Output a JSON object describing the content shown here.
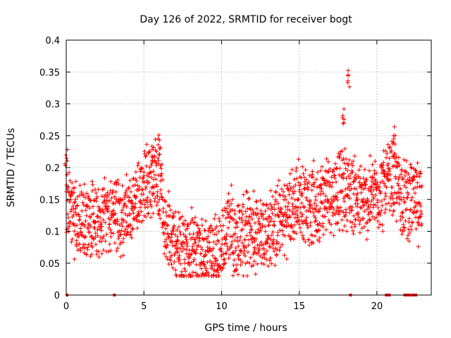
{
  "chart_data": {
    "type": "scatter",
    "title": "Day 126 of 2022, SRMTID for receiver bogt",
    "xlabel": "GPS time / hours",
    "ylabel": "SRMTID / TECUs",
    "xlim": [
      0,
      23.5
    ],
    "ylim": [
      0,
      0.4
    ],
    "xticks": [
      0,
      5,
      10,
      15,
      20
    ],
    "xtick_labels": [
      "0",
      "5",
      "10",
      "15",
      "20"
    ],
    "yticks": [
      0,
      0.05,
      0.1,
      0.15,
      0.2,
      0.25,
      0.3,
      0.35,
      0.4
    ],
    "ytick_labels": [
      "0",
      "0.05",
      "0.1",
      "0.15",
      "0.2",
      "0.25",
      "0.3",
      "0.35",
      "0.4"
    ],
    "grid": true,
    "marker": "+",
    "marker_color": "#ff0000",
    "trend": [
      {
        "x": 0.0,
        "y": 0.14
      },
      {
        "x": 1.0,
        "y": 0.11
      },
      {
        "x": 2.0,
        "y": 0.12
      },
      {
        "x": 3.0,
        "y": 0.12
      },
      {
        "x": 4.0,
        "y": 0.13
      },
      {
        "x": 5.0,
        "y": 0.17
      },
      {
        "x": 5.5,
        "y": 0.19
      },
      {
        "x": 6.0,
        "y": 0.17
      },
      {
        "x": 6.5,
        "y": 0.1
      },
      {
        "x": 7.0,
        "y": 0.08
      },
      {
        "x": 8.0,
        "y": 0.07
      },
      {
        "x": 9.0,
        "y": 0.06
      },
      {
        "x": 10.0,
        "y": 0.07
      },
      {
        "x": 10.5,
        "y": 0.11
      },
      {
        "x": 11.0,
        "y": 0.09
      },
      {
        "x": 12.0,
        "y": 0.1
      },
      {
        "x": 13.0,
        "y": 0.1
      },
      {
        "x": 14.0,
        "y": 0.12
      },
      {
        "x": 15.0,
        "y": 0.15
      },
      {
        "x": 16.0,
        "y": 0.14
      },
      {
        "x": 17.0,
        "y": 0.16
      },
      {
        "x": 18.0,
        "y": 0.17
      },
      {
        "x": 18.5,
        "y": 0.16
      },
      {
        "x": 19.0,
        "y": 0.14
      },
      {
        "x": 20.0,
        "y": 0.16
      },
      {
        "x": 21.0,
        "y": 0.18
      },
      {
        "x": 22.0,
        "y": 0.15
      },
      {
        "x": 23.0,
        "y": 0.14
      }
    ],
    "spread": 0.06,
    "data_end_hour": 22.9,
    "peaks": [
      {
        "x": 5.6,
        "y": 0.245
      },
      {
        "x": 6.0,
        "y": 0.255
      },
      {
        "x": 18.2,
        "y": 0.355
      },
      {
        "x": 17.8,
        "y": 0.295
      },
      {
        "x": 21.1,
        "y": 0.265
      },
      {
        "x": 0.0,
        "y": 0.23
      }
    ],
    "zero_points": [
      0.05,
      3.1,
      18.3,
      20.6,
      20.7,
      20.8,
      21.8,
      21.9,
      22.0,
      22.1,
      22.3,
      22.4,
      22.5
    ]
  }
}
